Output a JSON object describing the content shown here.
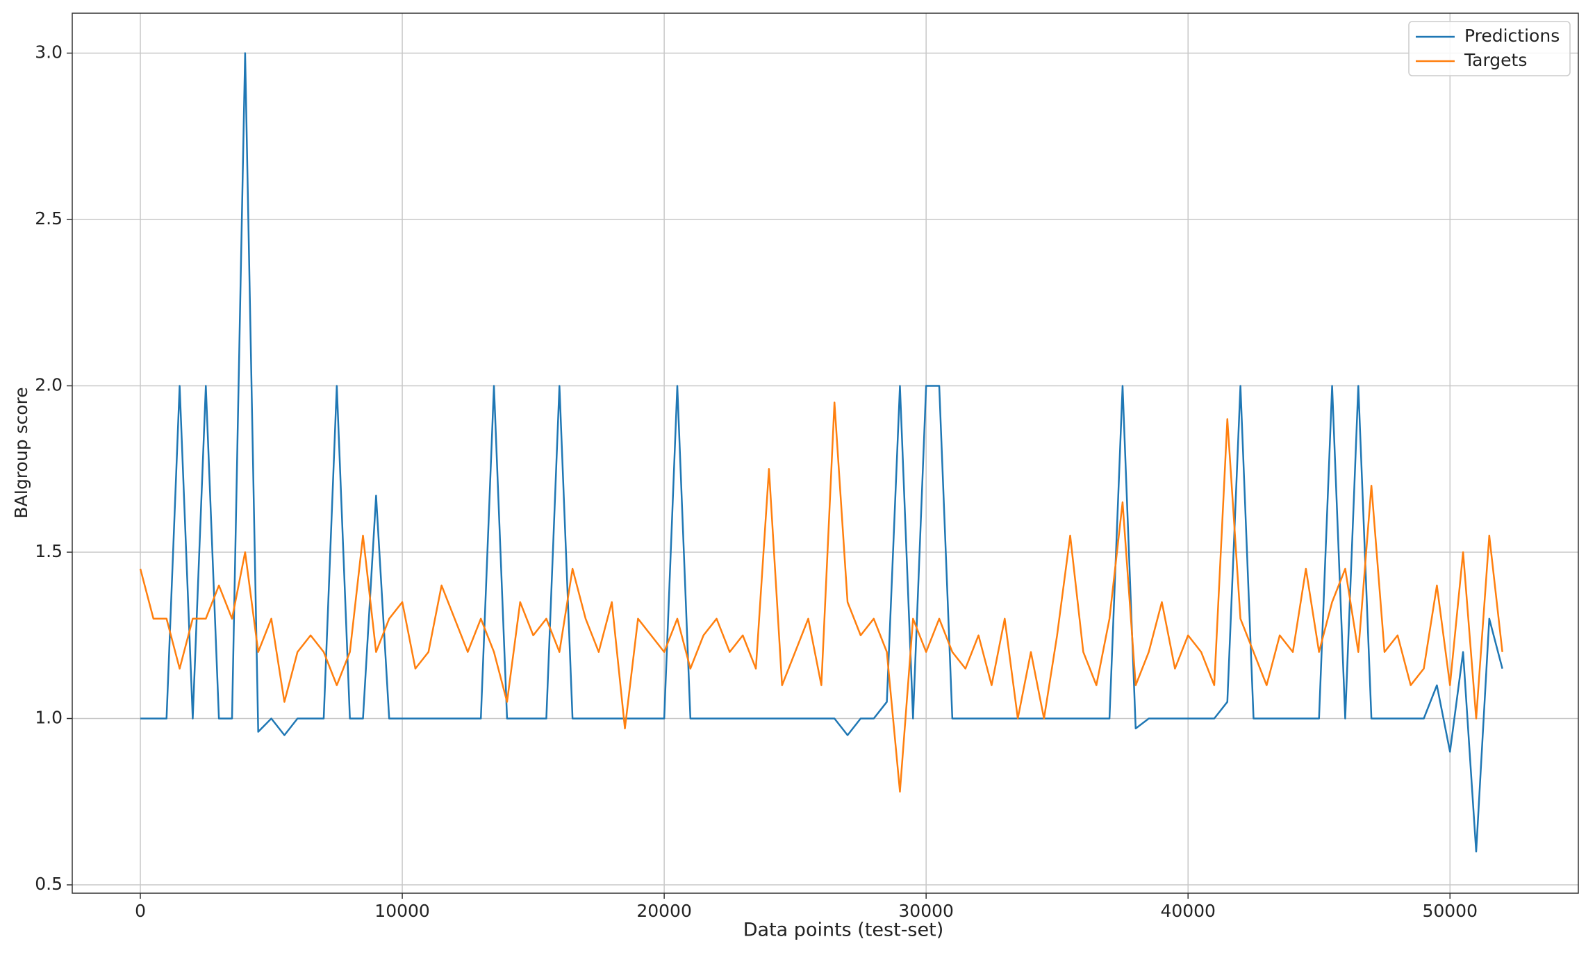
{
  "chart_data": {
    "type": "line",
    "x_label": "Data points (test-set)",
    "y_label": "BAIgroup score",
    "x": [
      0,
      500,
      1000,
      1500,
      2000,
      2500,
      3000,
      3500,
      4000,
      4500,
      5000,
      5500,
      6000,
      6500,
      7000,
      7500,
      8000,
      8500,
      9000,
      9500,
      10000,
      10500,
      11000,
      11500,
      12000,
      12500,
      13000,
      13500,
      14000,
      14500,
      15000,
      15500,
      16000,
      16500,
      17000,
      17500,
      18000,
      18500,
      19000,
      19500,
      20000,
      20500,
      21000,
      21500,
      22000,
      22500,
      23000,
      23500,
      24000,
      24500,
      25000,
      25500,
      26000,
      26500,
      27000,
      27500,
      28000,
      28500,
      29000,
      29500,
      30000,
      30500,
      31000,
      31500,
      32000,
      32500,
      33000,
      33500,
      34000,
      34500,
      35000,
      35500,
      36000,
      36500,
      37000,
      37500,
      38000,
      38500,
      39000,
      39500,
      40000,
      40500,
      41000,
      41500,
      42000,
      42500,
      43000,
      43500,
      44000,
      44500,
      45000,
      45500,
      46000,
      46500,
      47000,
      47500,
      48000,
      48500,
      49000,
      49500,
      50000,
      50500,
      51000,
      51500,
      52000
    ],
    "series": [
      {
        "name": "Predictions",
        "color": "#1f77b4",
        "values": [
          1.0,
          1.0,
          1.0,
          2.0,
          1.0,
          2.0,
          1.0,
          1.0,
          3.0,
          0.96,
          1.0,
          0.95,
          1.0,
          1.0,
          1.0,
          2.0,
          1.0,
          1.0,
          1.67,
          1.0,
          1.0,
          1.0,
          1.0,
          1.0,
          1.0,
          1.0,
          1.0,
          2.0,
          1.0,
          1.0,
          1.0,
          1.0,
          2.0,
          1.0,
          1.0,
          1.0,
          1.0,
          1.0,
          1.0,
          1.0,
          1.0,
          2.0,
          1.0,
          1.0,
          1.0,
          1.0,
          1.0,
          1.0,
          1.0,
          1.0,
          1.0,
          1.0,
          1.0,
          1.0,
          0.95,
          1.0,
          1.0,
          1.05,
          2.0,
          1.0,
          2.0,
          2.0,
          1.0,
          1.0,
          1.0,
          1.0,
          1.0,
          1.0,
          1.0,
          1.0,
          1.0,
          1.0,
          1.0,
          1.0,
          1.0,
          2.0,
          0.97,
          1.0,
          1.0,
          1.0,
          1.0,
          1.0,
          1.0,
          1.05,
          2.0,
          1.0,
          1.0,
          1.0,
          1.0,
          1.0,
          1.0,
          2.0,
          1.0,
          2.0,
          1.0,
          1.0,
          1.0,
          1.0,
          1.0,
          1.1,
          0.9,
          1.2,
          0.6,
          1.3,
          1.15
        ]
      },
      {
        "name": "Targets",
        "color": "#ff7f0e",
        "values": [
          1.45,
          1.3,
          1.3,
          1.15,
          1.3,
          1.3,
          1.4,
          1.3,
          1.5,
          1.2,
          1.3,
          1.05,
          1.2,
          1.25,
          1.2,
          1.1,
          1.2,
          1.55,
          1.2,
          1.3,
          1.35,
          1.15,
          1.2,
          1.4,
          1.3,
          1.2,
          1.3,
          1.2,
          1.05,
          1.35,
          1.25,
          1.3,
          1.2,
          1.45,
          1.3,
          1.2,
          1.35,
          0.97,
          1.3,
          1.25,
          1.2,
          1.3,
          1.15,
          1.25,
          1.3,
          1.2,
          1.25,
          1.15,
          1.75,
          1.1,
          1.2,
          1.3,
          1.1,
          1.95,
          1.35,
          1.25,
          1.3,
          1.2,
          0.78,
          1.3,
          1.2,
          1.3,
          1.2,
          1.15,
          1.25,
          1.1,
          1.3,
          1.0,
          1.2,
          1.0,
          1.25,
          1.55,
          1.2,
          1.1,
          1.3,
          1.65,
          1.1,
          1.2,
          1.35,
          1.15,
          1.25,
          1.2,
          1.1,
          1.9,
          1.3,
          1.2,
          1.1,
          1.25,
          1.2,
          1.45,
          1.2,
          1.35,
          1.45,
          1.2,
          1.7,
          1.2,
          1.25,
          1.1,
          1.15,
          1.4,
          1.1,
          1.5,
          1.0,
          1.55,
          1.2
        ]
      }
    ],
    "xlim": [
      -2600,
      54900
    ],
    "ylim": [
      0.475,
      3.12
    ],
    "xticks": [
      0,
      10000,
      20000,
      30000,
      40000,
      50000
    ],
    "yticks": [
      0.5,
      {
        "value": 1.0,
        "label": "1.0"
      },
      1.5,
      {
        "value": 2.0,
        "label": "2.0"
      },
      2.5,
      {
        "value": 3.0,
        "label": "3.0"
      }
    ],
    "grid": true,
    "legend": "upper right"
  }
}
